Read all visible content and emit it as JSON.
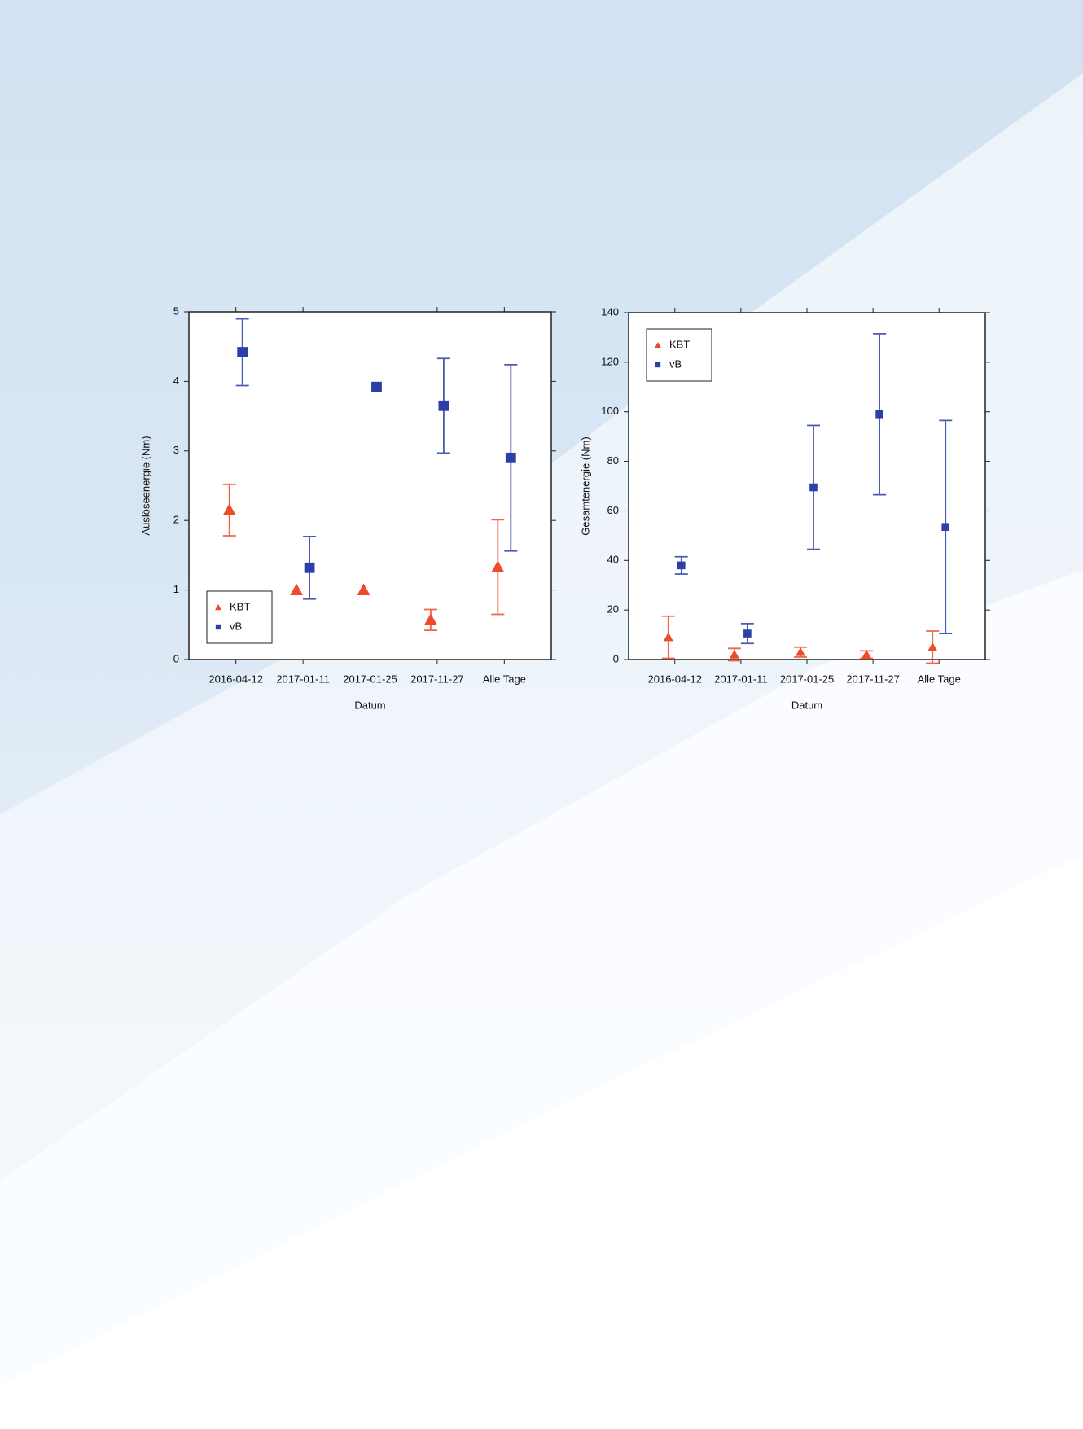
{
  "charts": [
    {
      "chart_data": {
        "type": "errorbar-scatter",
        "x_label": "Datum",
        "y_label": "Auslöseenergie (Nm)",
        "categories": [
          "2016-04-12",
          "2017-01-11",
          "2017-01-25",
          "2017-11-27",
          "Alle Tage"
        ],
        "ylim": [
          0,
          5
        ],
        "yticks": [
          0,
          1,
          2,
          3,
          4,
          5
        ],
        "legend": "lower left",
        "series": [
          {
            "name": "KBT",
            "color": "#ee4b2b",
            "marker": "triangle",
            "values": [
              2.15,
              1.0,
              1.0,
              0.57,
              1.33
            ],
            "errors": [
              0.37,
              null,
              null,
              0.15,
              0.68
            ]
          },
          {
            "name": "vB",
            "color": "#2b3fa6",
            "marker": "square",
            "values": [
              4.42,
              1.32,
              3.92,
              3.65,
              2.9
            ],
            "errors": [
              0.48,
              0.45,
              null,
              0.68,
              1.34
            ]
          }
        ]
      }
    },
    {
      "chart_data": {
        "type": "errorbar-scatter",
        "x_label": "Datum",
        "y_label": "Gesamtenergie (Nm)",
        "categories": [
          "2016-04-12",
          "2017-01-11",
          "2017-01-25",
          "2017-11-27",
          "Alle Tage"
        ],
        "ylim": [
          0,
          140
        ],
        "yticks": [
          0,
          20,
          40,
          60,
          80,
          100,
          120,
          140
        ],
        "legend": "upper left",
        "series": [
          {
            "name": "KBT",
            "color": "#ee4b2b",
            "marker": "triangle",
            "values": [
              9,
              2,
              3,
              2,
              5
            ],
            "errors": [
              8.5,
              2.5,
              2,
              1.5,
              6.5
            ]
          },
          {
            "name": "vB",
            "color": "#2b3fa6",
            "marker": "square",
            "values": [
              38,
              10.5,
              69.5,
              99,
              53.5
            ],
            "errors": [
              3.5,
              4,
              25,
              32.5,
              43
            ]
          }
        ]
      }
    }
  ]
}
